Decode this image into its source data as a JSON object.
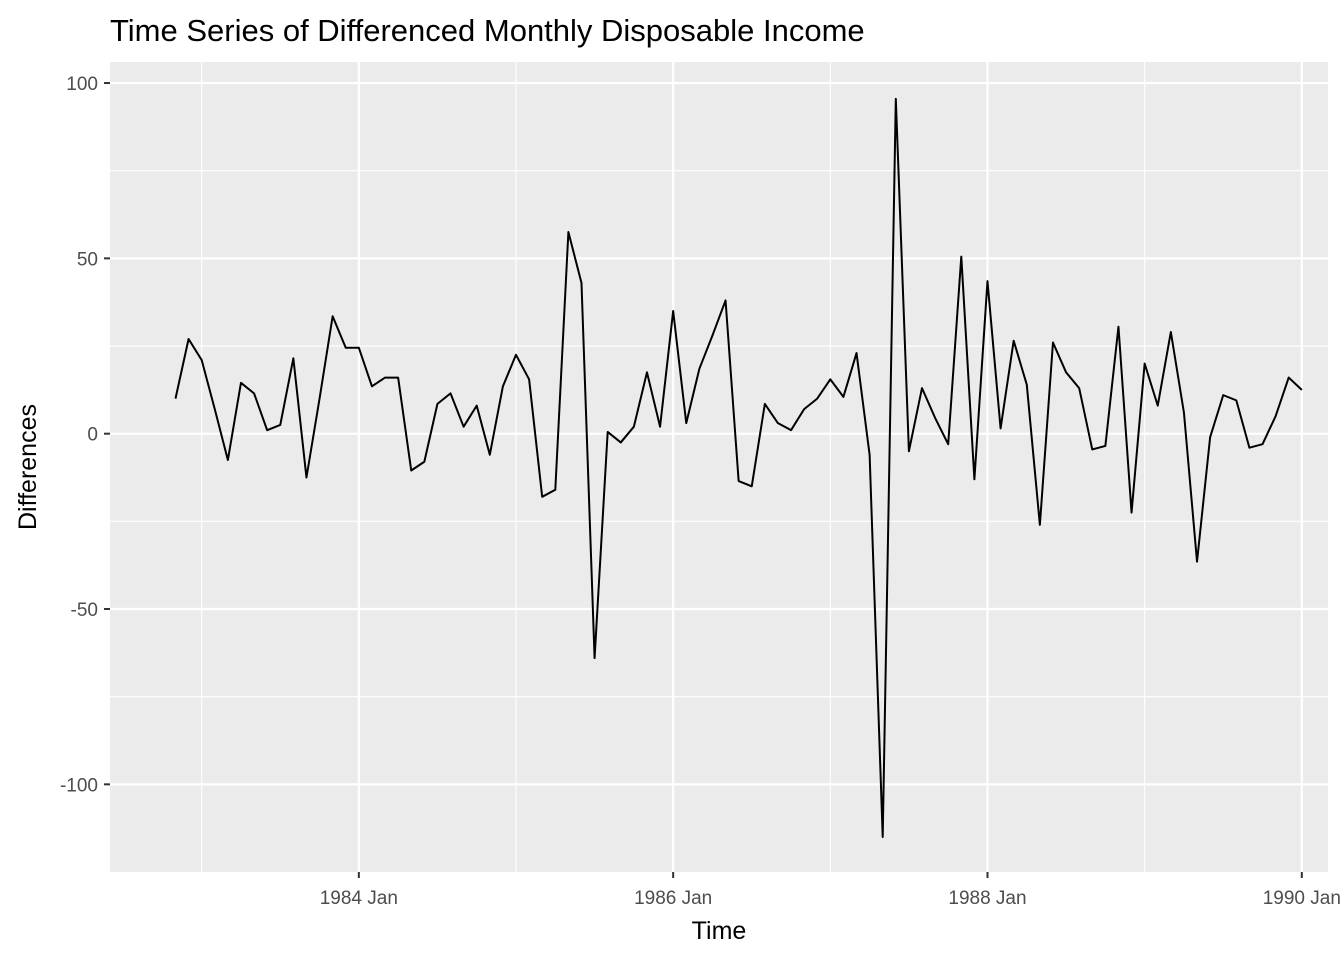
{
  "chart_data": {
    "type": "line",
    "title": "Time Series of Differenced Monthly Disposable Income",
    "xlabel": "Time",
    "ylabel": "Differences",
    "x_start": "1982-11",
    "x_frequency": "monthly",
    "xlim": [
      "1982-06",
      "1990-03"
    ],
    "ylim": [
      -125,
      106
    ],
    "y_ticks": [
      100,
      50,
      0,
      -50,
      -100
    ],
    "x_ticks": [
      {
        "label": "1984 Jan",
        "date": "1984-01"
      },
      {
        "label": "1986 Jan",
        "date": "1986-01"
      },
      {
        "label": "1988 Jan",
        "date": "1988-01"
      },
      {
        "label": "1990 Jan",
        "date": "1990-01"
      }
    ],
    "grid": true,
    "panel_background": "#ebebeb",
    "grid_color": "#ffffff",
    "line_color": "#000000",
    "series": [
      {
        "name": "Differences",
        "values": [
          10,
          27,
          21,
          7,
          -7.5,
          14.5,
          11.5,
          1,
          2.5,
          21.5,
          -12.5,
          10,
          33.5,
          24.5,
          24.5,
          13.5,
          16,
          16,
          -10.5,
          -8,
          8.5,
          11.5,
          2,
          8,
          -6,
          13.5,
          22.5,
          15.5,
          -18,
          -16,
          57.5,
          43,
          -64,
          0.5,
          -2.5,
          2,
          17.5,
          2,
          35,
          3,
          18.5,
          28,
          38,
          -13.5,
          -15,
          8.5,
          3,
          1,
          7,
          10,
          15.5,
          10.5,
          23,
          -6,
          -115,
          95.5,
          -5,
          13,
          4.5,
          -3,
          50.5,
          -13,
          43.5,
          1.5,
          26.5,
          14,
          -26,
          26,
          17.5,
          13,
          -4.5,
          -3.5,
          30.5,
          -22.5,
          20,
          8,
          29,
          6,
          -36.5,
          -1,
          11,
          9.5,
          -4,
          -3,
          5,
          16,
          12.5
        ]
      }
    ]
  }
}
